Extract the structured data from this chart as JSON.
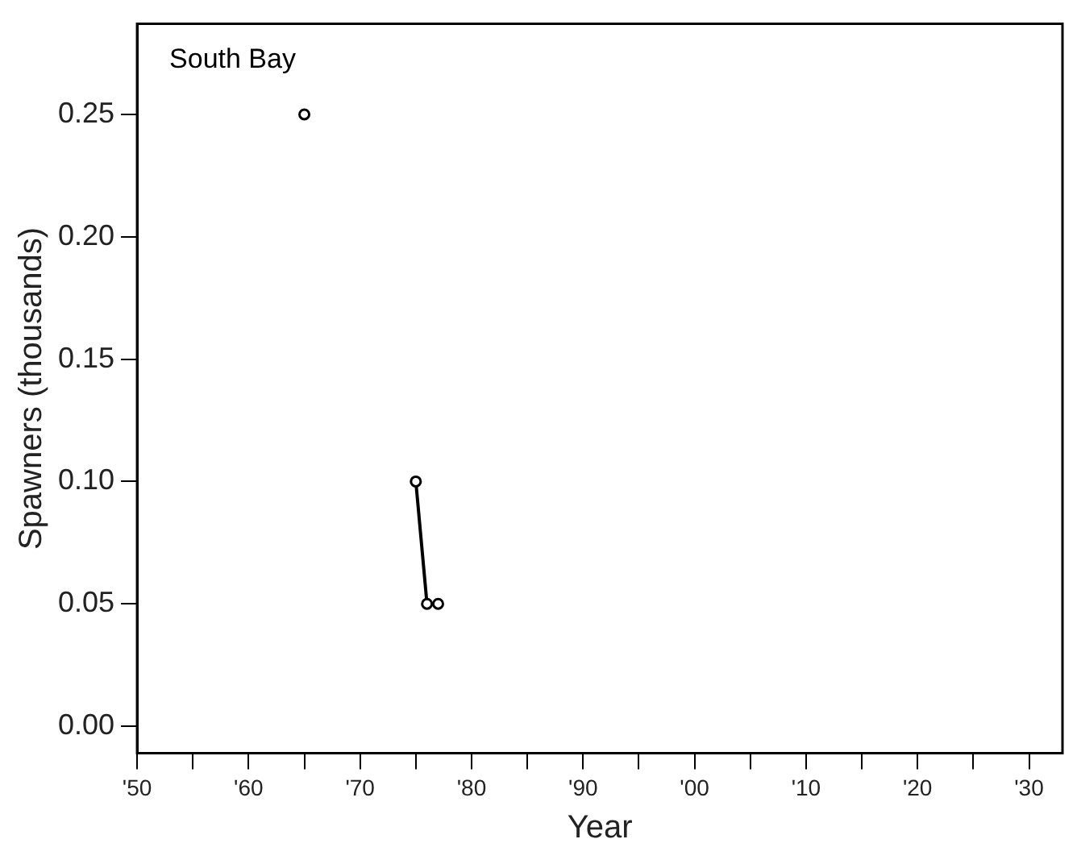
{
  "chart_data": {
    "type": "line",
    "xlabel": "Year",
    "ylabel": "Spawners (thousands)",
    "annotations": [
      "South Bay"
    ],
    "x": [
      1965,
      1970,
      1975,
      1976,
      1977
    ],
    "series": [
      {
        "color": "#000000",
        "values": [
          0.25,
          null,
          0.1,
          0.05,
          0.05
        ]
      }
    ],
    "xlim": [
      1950,
      2033
    ],
    "xticks": [
      {
        "value": 1950,
        "label": "'50"
      },
      {
        "value": 1955,
        "label": null
      },
      {
        "value": 1960,
        "label": "'60"
      },
      {
        "value": 1965,
        "label": null
      },
      {
        "value": 1970,
        "label": "'70"
      },
      {
        "value": 1975,
        "label": null
      },
      {
        "value": 1980,
        "label": "'80"
      },
      {
        "value": 1985,
        "label": null
      },
      {
        "value": 1990,
        "label": "'90"
      },
      {
        "value": 1995,
        "label": null
      },
      {
        "value": 2000,
        "label": "'00"
      },
      {
        "value": 2005,
        "label": null
      },
      {
        "value": 2010,
        "label": "'10"
      },
      {
        "value": 2015,
        "label": null
      },
      {
        "value": 2020,
        "label": "'20"
      },
      {
        "value": 2025,
        "label": null
      },
      {
        "value": 2030,
        "label": "'30"
      }
    ],
    "ylim": [
      -0.011,
      0.287
    ],
    "yticks": [
      {
        "value": 0,
        "label": "0.00"
      },
      {
        "value": 0.05,
        "label": "0.05"
      },
      {
        "value": 0.1,
        "label": "0.10"
      },
      {
        "value": 0.15,
        "label": "0.15"
      },
      {
        "value": 0.2,
        "label": "0.20"
      },
      {
        "value": 0.25,
        "label": "0.25"
      }
    ],
    "grid": false,
    "legend": false,
    "marker": "circle",
    "line_style": "solid"
  }
}
